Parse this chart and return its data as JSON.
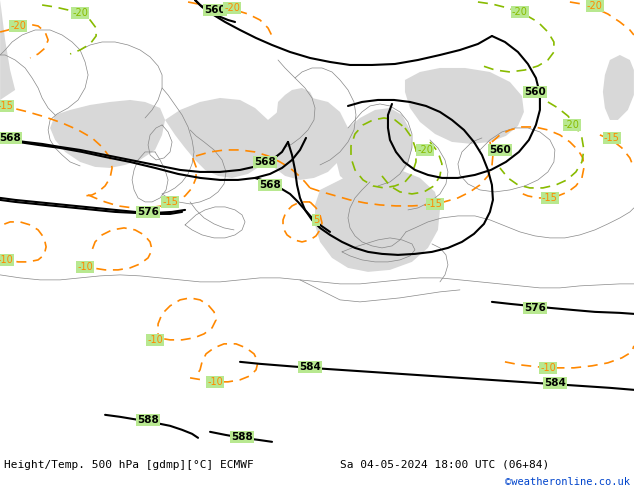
{
  "title_left": "Height/Temp. 500 hPa [gdmp][°C] ECMWF",
  "title_right": "Sa 04-05-2024 18:00 UTC (06+84)",
  "credit": "©weatheronline.co.uk",
  "land_color": "#b8e890",
  "sea_color": "#d8d8d8",
  "coast_color": "#888888",
  "z500_color": "#000000",
  "temp_neg_color": "#ff8800",
  "temp_pos_color": "#88bb00",
  "bottom_bg": "#ffffff",
  "text_color": "#000000",
  "credit_color": "#0044cc",
  "figsize": [
    6.34,
    4.9
  ],
  "dpi": 100
}
